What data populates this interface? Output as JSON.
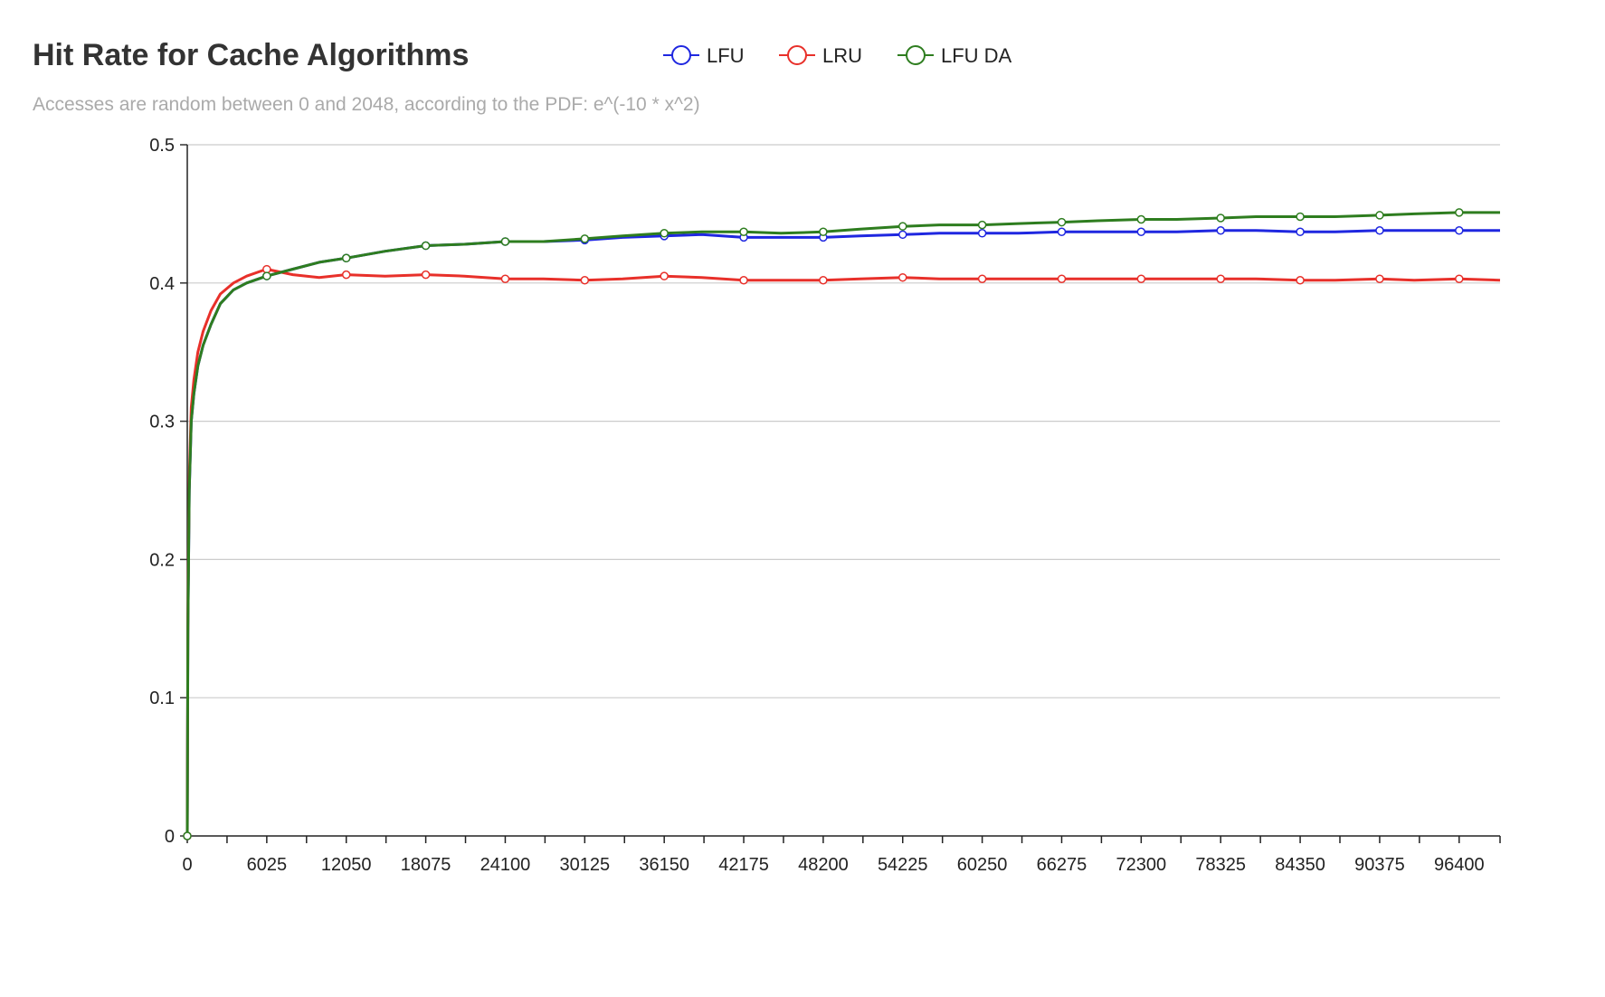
{
  "chart_data": {
    "type": "line",
    "title": "Hit Rate for Cache Algorithms",
    "subtitle": "Accesses are random between 0 and 2048, according to the PDF: e^(-10 * x^2)",
    "xlabel": "",
    "ylabel": "",
    "xlim": [
      0,
      99500
    ],
    "ylim": [
      0,
      0.5
    ],
    "x_ticks": [
      0,
      6025,
      12050,
      18075,
      24100,
      30125,
      36150,
      42175,
      48200,
      54225,
      60250,
      66275,
      72300,
      78325,
      84350,
      90375,
      96400
    ],
    "y_ticks": [
      0,
      0.1,
      0.2,
      0.3,
      0.4,
      0.5
    ],
    "y_tick_labels": [
      "0",
      "0.1",
      "0.2",
      "0.3",
      "0.4",
      "0.5"
    ],
    "grid": "horizontal",
    "legend_position": "top",
    "series": [
      {
        "name": "LFU",
        "color": "#1f27e0",
        "x": [
          0,
          50,
          150,
          300,
          500,
          800,
          1200,
          1800,
          2500,
          3500,
          4500,
          6000,
          8000,
          10000,
          12050,
          15000,
          18075,
          21000,
          24100,
          27000,
          30125,
          33000,
          36150,
          39000,
          42175,
          45000,
          48200,
          51000,
          54225,
          57000,
          60250,
          63000,
          66275,
          69000,
          72300,
          75000,
          78325,
          81000,
          84350,
          87000,
          90375,
          93000,
          96400,
          99500
        ],
        "y": [
          0,
          0.15,
          0.25,
          0.3,
          0.32,
          0.34,
          0.355,
          0.37,
          0.385,
          0.395,
          0.4,
          0.405,
          0.41,
          0.415,
          0.418,
          0.423,
          0.427,
          0.428,
          0.43,
          0.43,
          0.431,
          0.433,
          0.434,
          0.435,
          0.433,
          0.433,
          0.433,
          0.434,
          0.435,
          0.436,
          0.436,
          0.436,
          0.437,
          0.437,
          0.437,
          0.437,
          0.438,
          0.438,
          0.437,
          0.437,
          0.438,
          0.438,
          0.438,
          0.438
        ]
      },
      {
        "name": "LRU",
        "color": "#e8302a",
        "x": [
          0,
          50,
          150,
          300,
          500,
          800,
          1200,
          1800,
          2500,
          3500,
          4500,
          6000,
          8000,
          10000,
          12050,
          15000,
          18075,
          21000,
          24100,
          27000,
          30125,
          33000,
          36150,
          39000,
          42175,
          45000,
          48200,
          51000,
          54225,
          57000,
          60250,
          63000,
          66275,
          69000,
          72300,
          75000,
          78325,
          81000,
          84350,
          87000,
          90375,
          93000,
          96400,
          99500
        ],
        "y": [
          0,
          0.16,
          0.26,
          0.31,
          0.33,
          0.35,
          0.365,
          0.38,
          0.392,
          0.4,
          0.405,
          0.41,
          0.406,
          0.404,
          0.406,
          0.405,
          0.406,
          0.405,
          0.403,
          0.403,
          0.402,
          0.403,
          0.405,
          0.404,
          0.402,
          0.402,
          0.402,
          0.403,
          0.404,
          0.403,
          0.403,
          0.403,
          0.403,
          0.403,
          0.403,
          0.403,
          0.403,
          0.403,
          0.402,
          0.402,
          0.403,
          0.402,
          0.403,
          0.402
        ]
      },
      {
        "name": "LFU DA",
        "color": "#2e7d1f",
        "x": [
          0,
          50,
          150,
          300,
          500,
          800,
          1200,
          1800,
          2500,
          3500,
          4500,
          6000,
          8000,
          10000,
          12050,
          15000,
          18075,
          21000,
          24100,
          27000,
          30125,
          33000,
          36150,
          39000,
          42175,
          45000,
          48200,
          51000,
          54225,
          57000,
          60250,
          63000,
          66275,
          69000,
          72300,
          75000,
          78325,
          81000,
          84350,
          87000,
          90375,
          93000,
          96400,
          99500
        ],
        "y": [
          0,
          0.15,
          0.25,
          0.3,
          0.32,
          0.34,
          0.355,
          0.37,
          0.385,
          0.395,
          0.4,
          0.405,
          0.41,
          0.415,
          0.418,
          0.423,
          0.427,
          0.428,
          0.43,
          0.43,
          0.432,
          0.434,
          0.436,
          0.437,
          0.437,
          0.436,
          0.437,
          0.439,
          0.441,
          0.442,
          0.442,
          0.443,
          0.444,
          0.445,
          0.446,
          0.446,
          0.447,
          0.448,
          0.448,
          0.448,
          0.449,
          0.45,
          0.451,
          0.451
        ]
      }
    ],
    "markers_x": [
      0,
      6025,
      12050,
      18075,
      24100,
      30125,
      36150,
      42175,
      48200,
      54225,
      60250,
      66275,
      72300,
      78325,
      84350,
      90375,
      96400
    ]
  }
}
